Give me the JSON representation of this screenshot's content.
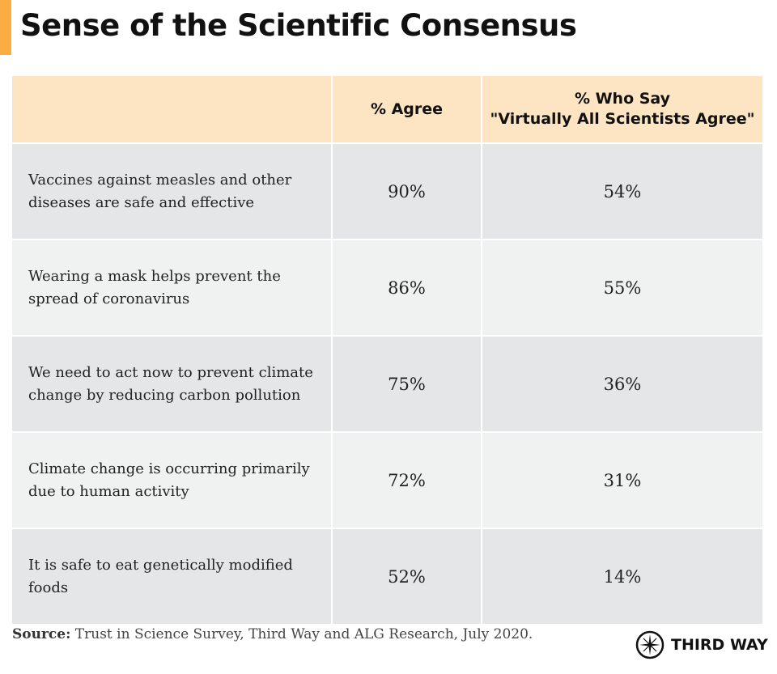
{
  "title": "Sense of the Scientific Consensus",
  "colors": {
    "accent": "#fbad41",
    "header_bg": "#fde5c3",
    "row_dark": "#e5e6e8",
    "row_light": "#f0f1f1"
  },
  "chart_data": {
    "type": "table",
    "columns": [
      "",
      "% Agree",
      "% Who Say \"Virtually All Scientists Agree\""
    ],
    "column_lines": {
      "col2_line1": "% Who Say",
      "col2_line2": "\"Virtually All Scientists Agree\""
    },
    "rows": [
      {
        "statement": "Vaccines against measles and other diseases are safe and effective",
        "agree": "90%",
        "virtually_all": "54%"
      },
      {
        "statement": "Wearing a mask helps prevent the spread of coronavirus",
        "agree": "86%",
        "virtually_all": "55%"
      },
      {
        "statement": "We need to act now to prevent climate change by reducing carbon pollution",
        "agree": "75%",
        "virtually_all": "36%"
      },
      {
        "statement": "Climate change is occurring primarily due to human activity",
        "agree": "72%",
        "virtually_all": "31%"
      },
      {
        "statement": "It is safe to eat genetically modified foods",
        "agree": "52%",
        "virtually_all": "14%"
      }
    ]
  },
  "source": {
    "label": "Source:",
    "text": " Trust in Science Survey, Third Way and ALG Research, July 2020."
  },
  "logo": {
    "text": "THIRD WAY",
    "icon": "compass-star-icon"
  }
}
